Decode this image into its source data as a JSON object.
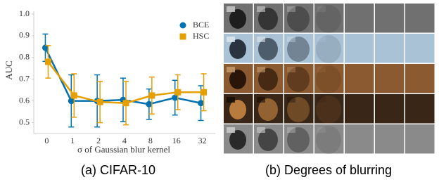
{
  "chart_data": {
    "type": "line",
    "categories": [
      "0",
      "1",
      "2",
      "4",
      "8",
      "16",
      "32"
    ],
    "series": [
      {
        "name": "BCE",
        "color": "#0072b2",
        "values": [
          0.845,
          0.6,
          0.6,
          0.605,
          0.585,
          0.615,
          0.59
        ],
        "errors": [
          0.063,
          0.12,
          0.12,
          0.1,
          0.07,
          0.08,
          0.08
        ]
      },
      {
        "name": "HSC",
        "color": "#e69f00",
        "values": [
          0.78,
          0.625,
          0.595,
          0.59,
          0.625,
          0.64,
          0.64
        ],
        "errors": [
          0.075,
          0.1,
          0.095,
          0.1,
          0.085,
          0.08,
          0.085
        ]
      }
    ],
    "ylim": [
      0.45,
      1.0
    ],
    "yticks": [
      0.5,
      0.6,
      0.7,
      0.8,
      0.9,
      {
        "value": 1.0,
        "label": "1.0"
      }
    ],
    "y_label": "AUC",
    "x_label": "σ of Gaussian blur kernel",
    "legend": "upper right",
    "grid": false,
    "caption": "(a) CIFAR-10"
  },
  "right_panel": {
    "caption": "(b) Degrees of blurring"
  }
}
